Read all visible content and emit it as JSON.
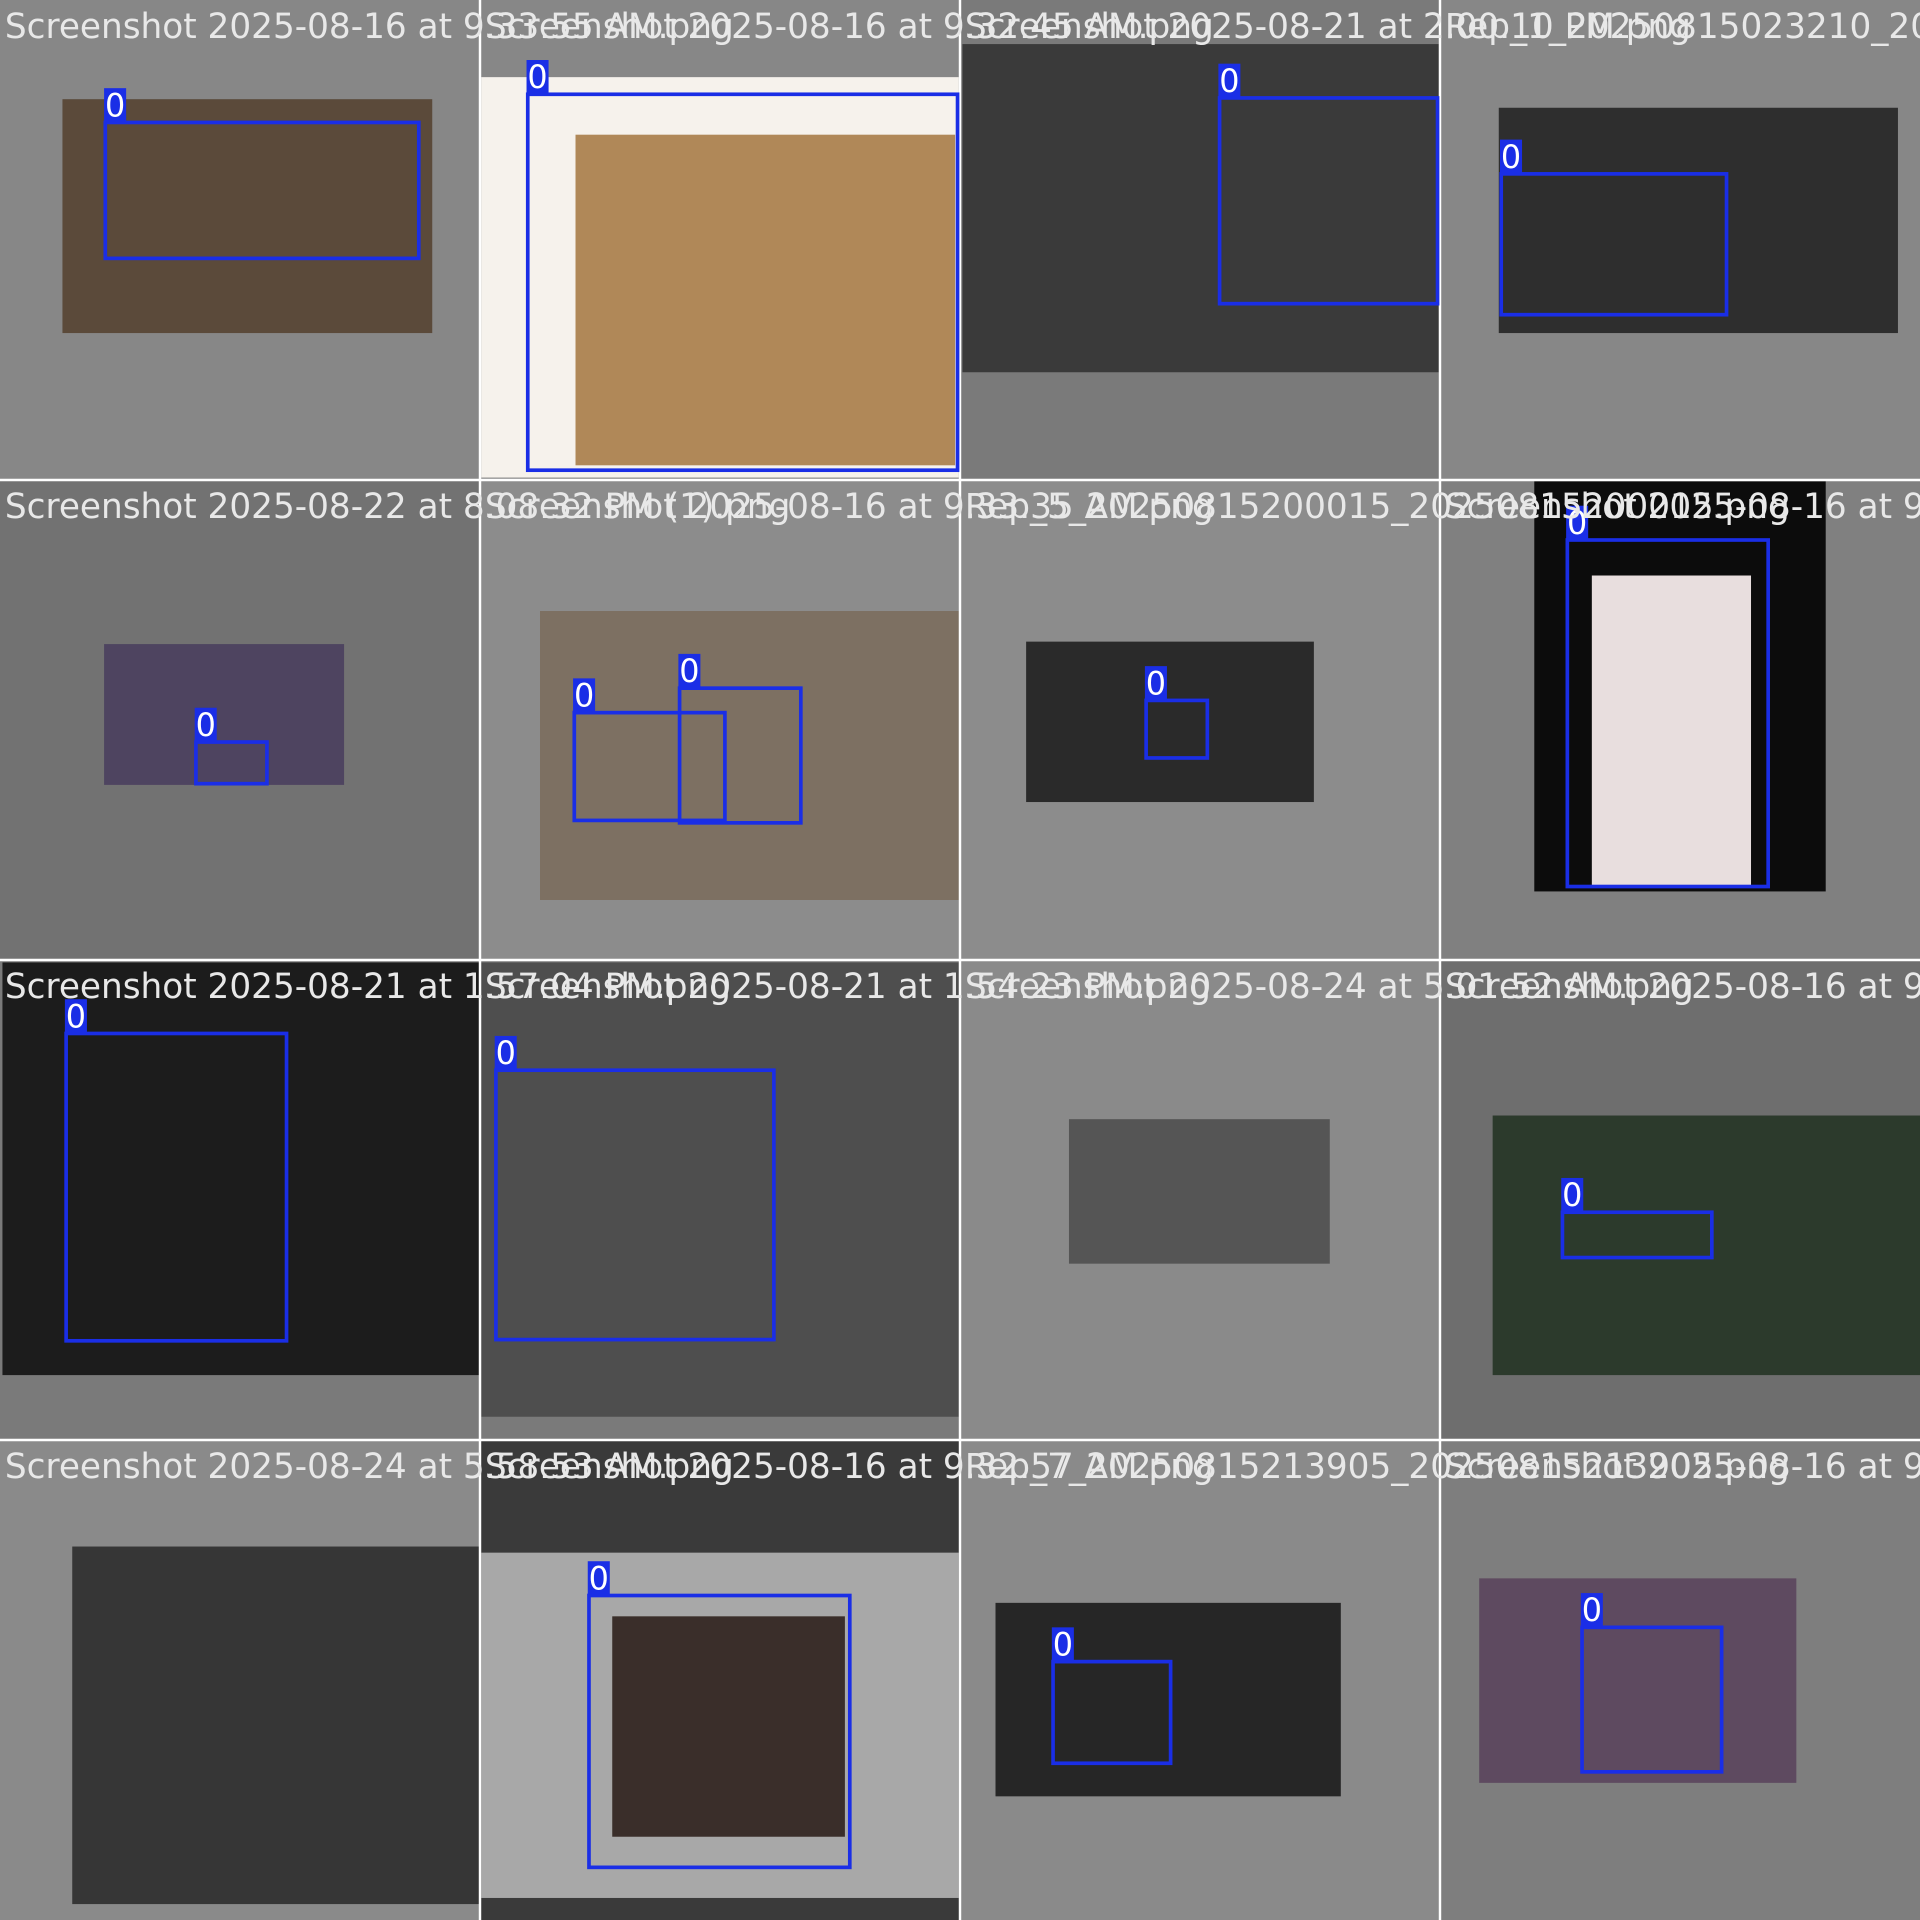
{
  "tiles": [
    {
      "file": "Screenshot 2025-08-16 at 9.33.55 AM.png",
      "boxes": [
        {
          "label": "0"
        }
      ]
    },
    {
      "file": "Screenshot 2025-08-16 at 9.32.45 AM.png",
      "boxes": [
        {
          "label": "0"
        }
      ]
    },
    {
      "file": "Screenshot 2025-08-21 at 2.00.10 PM.png",
      "boxes": [
        {
          "label": "0"
        }
      ]
    },
    {
      "file": "Rep_1_20250815023210_2025",
      "boxes": [
        {
          "label": "0"
        }
      ]
    },
    {
      "file": "Screenshot 2025-08-22 at 8.08.32 PM (1).png",
      "boxes": [
        {
          "label": "0"
        }
      ]
    },
    {
      "file": "Screenshot 2025-08-16 at 9.33.35 AM.png",
      "boxes": [
        {
          "label": "0"
        },
        {
          "label": "0"
        }
      ]
    },
    {
      "file": "Rep_5_20250815200015_20250815200015.png",
      "boxes": [
        {
          "label": "0"
        }
      ]
    },
    {
      "file": "Screenshot 2025-08-16 at 9",
      "boxes": [
        {
          "label": "0"
        }
      ]
    },
    {
      "file": "Screenshot 2025-08-21 at 1.57.04 PM.png",
      "boxes": [
        {
          "label": "0"
        }
      ]
    },
    {
      "file": "Screenshot 2025-08-21 at 1.54.23 PM.png",
      "boxes": [
        {
          "label": "0"
        }
      ]
    },
    {
      "file": "Screenshot 2025-08-24 at 5.01.52 AM.png",
      "boxes": []
    },
    {
      "file": "Screenshot 2025-08-16 at 9",
      "boxes": [
        {
          "label": "0"
        }
      ]
    },
    {
      "file": "Screenshot 2025-08-24 at 5.58.53 AM.png",
      "boxes": []
    },
    {
      "file": "Screenshot 2025-08-16 at 9.32.57 AM.png",
      "boxes": [
        {
          "label": "0"
        }
      ]
    },
    {
      "file": "Rep_7_20250815213905_20250815213905.png",
      "boxes": [
        {
          "label": "0"
        }
      ]
    },
    {
      "file": "Screenshot 2025-08-16 at 9",
      "boxes": [
        {
          "label": "0"
        }
      ]
    }
  ]
}
